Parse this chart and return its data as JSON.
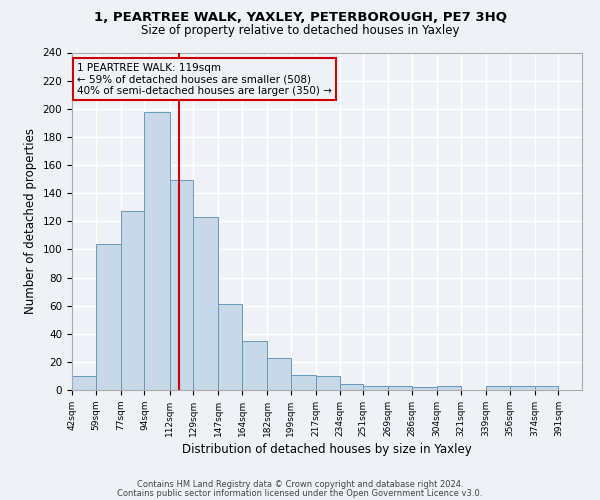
{
  "title1": "1, PEARTREE WALK, YAXLEY, PETERBOROUGH, PE7 3HQ",
  "title2": "Size of property relative to detached houses in Yaxley",
  "xlabel": "Distribution of detached houses by size in Yaxley",
  "ylabel": "Number of detached properties",
  "bin_labels": [
    "42sqm",
    "59sqm",
    "77sqm",
    "94sqm",
    "112sqm",
    "129sqm",
    "147sqm",
    "164sqm",
    "182sqm",
    "199sqm",
    "217sqm",
    "234sqm",
    "251sqm",
    "269sqm",
    "286sqm",
    "304sqm",
    "321sqm",
    "339sqm",
    "356sqm",
    "374sqm",
    "391sqm"
  ],
  "bar_values": [
    10,
    104,
    127,
    198,
    149,
    123,
    61,
    35,
    23,
    11,
    10,
    4,
    3,
    3,
    2,
    3,
    0,
    3,
    3,
    3
  ],
  "bin_edges": [
    42,
    59,
    77,
    94,
    112,
    129,
    147,
    164,
    182,
    199,
    217,
    234,
    251,
    269,
    286,
    304,
    321,
    339,
    356,
    374,
    391
  ],
  "bar_color": "#c8d8e8",
  "bar_edge_color": "#6699bb",
  "vline_x": 119,
  "vline_color": "#cc0000",
  "annotation_line1": "1 PEARTREE WALK: 119sqm",
  "annotation_line2": "← 59% of detached houses are smaller (508)",
  "annotation_line3": "40% of semi-detached houses are larger (350) →",
  "annotation_box_color": "#cc0000",
  "ylim": [
    0,
    240
  ],
  "yticks": [
    0,
    20,
    40,
    60,
    80,
    100,
    120,
    140,
    160,
    180,
    200,
    220,
    240
  ],
  "footer1": "Contains HM Land Registry data © Crown copyright and database right 2024.",
  "footer2": "Contains public sector information licensed under the Open Government Licence v3.0.",
  "bg_color": "#eef2f7",
  "grid_color": "#ffffff"
}
